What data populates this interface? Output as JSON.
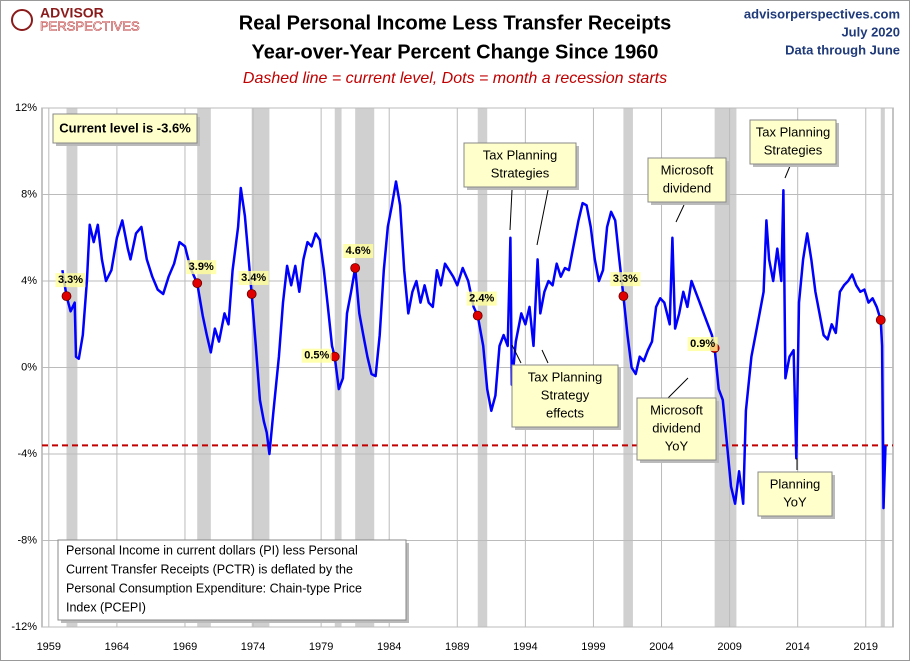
{
  "chart_data": {
    "type": "line",
    "title": [
      "Real Personal Income Less Transfer Receipts",
      "Year-over-Year Percent Change Since 1960"
    ],
    "subtitle": "Dashed line = current level, Dots = month a recession starts",
    "logo": [
      "ADVISOR",
      "PERSPECTIVES"
    ],
    "source": "advisorperspectives.com",
    "date": "July 2020",
    "data_note": "Data through June",
    "xlim": [
      1958.5,
      2021
    ],
    "xticks": [
      1959,
      1964,
      1969,
      1974,
      1979,
      1984,
      1989,
      1994,
      1999,
      2004,
      2009,
      2014,
      2019
    ],
    "ylim": [
      -12,
      12
    ],
    "yticks": [
      {
        "value": 12,
        "label": "12%"
      },
      {
        "value": 8,
        "label": "8%"
      },
      {
        "value": 4,
        "label": "4%"
      },
      {
        "value": 0,
        "label": "0%"
      },
      {
        "value": -4,
        "label": "-4%"
      },
      {
        "value": -8,
        "label": "-8%"
      },
      {
        "value": -12,
        "label": "-12%"
      }
    ],
    "grid": true,
    "series": [
      {
        "name": "Real Personal Income Less Transfer Receipts",
        "color": "#0000ff",
        "x": [
          1960.0,
          1960.3,
          1960.6,
          1960.9,
          1961.0,
          1961.2,
          1961.5,
          1961.8,
          1962.0,
          1962.3,
          1962.6,
          1962.9,
          1963.2,
          1963.6,
          1964.0,
          1964.4,
          1964.8,
          1965.0,
          1965.4,
          1965.8,
          1966.2,
          1966.6,
          1967.0,
          1967.4,
          1967.8,
          1968.2,
          1968.6,
          1969.0,
          1969.4,
          1969.9,
          1970.3,
          1970.6,
          1970.9,
          1971.2,
          1971.5,
          1971.9,
          1972.2,
          1972.5,
          1972.9,
          1973.1,
          1973.4,
          1973.9,
          1974.2,
          1974.5,
          1974.8,
          1975.0,
          1975.2,
          1975.5,
          1975.9,
          1976.2,
          1976.5,
          1976.8,
          1977.1,
          1977.4,
          1977.7,
          1978.0,
          1978.3,
          1978.6,
          1978.9,
          1979.2,
          1979.5,
          1979.8,
          1980.0,
          1980.3,
          1980.6,
          1980.9,
          1981.2,
          1981.5,
          1981.8,
          1982.1,
          1982.4,
          1982.7,
          1983.0,
          1983.3,
          1983.6,
          1983.9,
          1984.2,
          1984.5,
          1984.8,
          1985.1,
          1985.4,
          1985.7,
          1986.0,
          1986.3,
          1986.6,
          1986.9,
          1987.2,
          1987.5,
          1987.8,
          1988.1,
          1988.4,
          1988.7,
          1989.0,
          1989.4,
          1989.8,
          1990.2,
          1990.5,
          1990.9,
          1991.2,
          1991.5,
          1991.8,
          1992.1,
          1992.4,
          1992.7,
          1992.9,
          1993.0,
          1993.3,
          1993.7,
          1994.0,
          1994.3,
          1994.6,
          1994.9,
          1995.1,
          1995.4,
          1995.7,
          1996.0,
          1996.3,
          1996.6,
          1996.9,
          1997.2,
          1997.5,
          1997.9,
          1998.2,
          1998.5,
          1998.8,
          1999.1,
          1999.4,
          1999.7,
          2000.0,
          2000.3,
          2000.6,
          2000.9,
          2001.2,
          2001.5,
          2001.8,
          2002.1,
          2002.4,
          2002.7,
          2003.0,
          2003.3,
          2003.6,
          2003.9,
          2004.2,
          2004.6,
          2004.8,
          2005.0,
          2005.3,
          2005.6,
          2005.9,
          2006.2,
          2006.5,
          2006.8,
          2007.1,
          2007.4,
          2007.7,
          2007.9,
          2008.2,
          2008.5,
          2008.8,
          2009.1,
          2009.4,
          2009.7,
          2010.0,
          2010.2,
          2010.6,
          2010.9,
          2011.2,
          2011.5,
          2011.7,
          2011.9,
          2012.2,
          2012.5,
          2012.8,
          2012.95,
          2013.1,
          2013.4,
          2013.7,
          2013.9,
          2014.1,
          2014.4,
          2014.7,
          2015.0,
          2015.3,
          2015.6,
          2015.9,
          2016.2,
          2016.5,
          2016.8,
          2017.1,
          2017.4,
          2017.7,
          2018.0,
          2018.3,
          2018.6,
          2018.9,
          2019.2,
          2019.5,
          2019.8,
          2020.1,
          2020.2,
          2020.3,
          2020.45
        ],
        "values": [
          4.5,
          3.3,
          2.6,
          3.0,
          0.5,
          0.4,
          1.5,
          4.0,
          6.6,
          5.8,
          6.6,
          5.0,
          4.0,
          4.5,
          6.0,
          6.8,
          5.5,
          5.0,
          6.2,
          6.5,
          5.0,
          4.2,
          3.6,
          3.4,
          4.2,
          4.8,
          5.8,
          5.6,
          4.6,
          3.9,
          2.4,
          1.5,
          0.7,
          1.8,
          1.2,
          2.5,
          2.0,
          4.5,
          6.5,
          8.3,
          7.0,
          3.4,
          1.0,
          -1.5,
          -2.5,
          -3.0,
          -4.0,
          -2.0,
          0.5,
          3.0,
          4.7,
          3.8,
          4.7,
          3.5,
          5.0,
          5.8,
          5.6,
          6.2,
          5.9,
          4.5,
          2.8,
          1.0,
          0.5,
          -1.0,
          -0.5,
          2.5,
          3.5,
          4.6,
          2.5,
          1.5,
          0.5,
          -0.3,
          -0.4,
          1.5,
          4.5,
          6.5,
          7.5,
          8.6,
          7.5,
          4.5,
          2.5,
          3.5,
          4.0,
          3.0,
          3.8,
          3.0,
          2.8,
          4.5,
          3.8,
          4.8,
          4.5,
          4.2,
          3.8,
          4.6,
          4.0,
          2.8,
          2.4,
          1.0,
          -1.0,
          -2.0,
          -1.3,
          1.0,
          1.5,
          1.0,
          6.0,
          -0.8,
          1.2,
          2.5,
          2.0,
          2.8,
          1.0,
          5.0,
          2.5,
          3.5,
          4.0,
          3.8,
          4.8,
          4.2,
          4.6,
          4.5,
          5.5,
          6.8,
          7.6,
          7.5,
          6.5,
          5.0,
          4.0,
          4.5,
          6.5,
          7.2,
          6.8,
          5.0,
          3.3,
          1.5,
          0.0,
          -0.3,
          0.5,
          0.3,
          0.8,
          1.2,
          2.8,
          3.2,
          3.0,
          2.0,
          6.0,
          1.8,
          2.5,
          3.5,
          2.8,
          4.0,
          3.5,
          3.0,
          2.5,
          2.0,
          1.5,
          0.9,
          -1.0,
          -1.5,
          -3.5,
          -5.5,
          -6.3,
          -4.8,
          -6.3,
          -2.0,
          0.5,
          1.5,
          2.5,
          3.5,
          6.8,
          5.0,
          4.0,
          5.5,
          4.0,
          8.2,
          -0.5,
          0.5,
          0.8,
          -4.2,
          3.0,
          5.0,
          6.2,
          5.0,
          3.5,
          2.5,
          1.5,
          1.3,
          2.0,
          1.6,
          3.5,
          3.8,
          4.0,
          4.3,
          3.8,
          3.5,
          3.6,
          3.0,
          3.2,
          2.8,
          2.2,
          1.0,
          -6.5,
          -3.6
        ]
      }
    ],
    "recessions": [
      [
        1960.3,
        1961.1
      ],
      [
        1969.9,
        1970.9
      ],
      [
        1973.9,
        1975.2
      ],
      [
        1980.0,
        1980.5
      ],
      [
        1981.5,
        1982.9
      ],
      [
        1990.5,
        1991.2
      ],
      [
        2001.2,
        2001.9
      ],
      [
        2007.9,
        2009.5
      ],
      [
        2020.1,
        2020.4
      ]
    ],
    "recession_starts": {
      "x": [
        1960.3,
        1969.9,
        1973.9,
        1980.0,
        1981.5,
        1990.5,
        2001.2,
        2007.9,
        2020.1
      ],
      "values": [
        3.3,
        3.9,
        3.4,
        0.5,
        4.6,
        2.4,
        3.3,
        0.9,
        2.2
      ],
      "value_labels": [
        "3.3%",
        "3.9%",
        "3.4%",
        "0.5%",
        "4.6%",
        "2.4%",
        "3.3%",
        "0.9%",
        null
      ],
      "color": "#e00000"
    },
    "current_level": -3.6,
    "current_level_label": "Current level is -3.6%",
    "annotations": [
      [
        "Tax Planning",
        "Strategies"
      ],
      [
        "Microsoft",
        "dividend"
      ],
      [
        "Tax Planning",
        "Strategies"
      ],
      [
        "Tax Planning",
        "Strategy",
        "effects"
      ],
      [
        "Microsoft",
        "dividend",
        "YoY"
      ],
      [
        "Planning",
        "YoY"
      ]
    ],
    "note": [
      "Personal Income in current dollars  (PI) less Personal",
      "Current Transfer Receipts (PCTR) is deflated by the",
      "Personal Consumption Expenditure: Chain-type Price",
      "Index (PCEPI)"
    ]
  }
}
